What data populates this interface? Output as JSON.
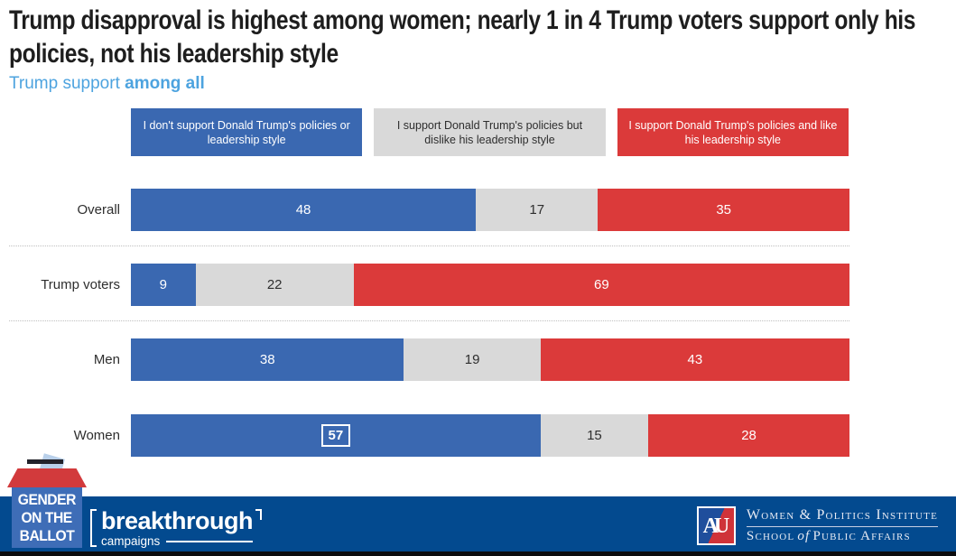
{
  "title": "Trump disapproval is highest among women; nearly 1 in 4 Trump voters support only his policies, not his leadership style",
  "subtitle": {
    "prefix": "Trump support ",
    "emphasis": "among all"
  },
  "colors": {
    "subtitle_blue": "#4DA3DF",
    "footer_navy": "#034A8F",
    "footer_strip": "#0C0D0F",
    "gob_box_blue": "#3E6DB7",
    "gob_lid_red": "#D23A3C",
    "gob_paper_blue": "#B9D0EA",
    "au_blue": "#1F4E9C",
    "au_red": "#CF3339"
  },
  "chart_data": {
    "type": "bar",
    "stacked": true,
    "orientation": "horizontal",
    "unit": "percent",
    "xlim": [
      0,
      100
    ],
    "categories": [
      "Overall",
      "Trump voters",
      "Men",
      "Women"
    ],
    "series": [
      {
        "name": "I don't support Donald Trump's policies or leadership style",
        "color": "#3A68B1",
        "values": [
          48,
          9,
          38,
          57
        ]
      },
      {
        "name": "I support Donald Trump's policies but dislike his leadership style",
        "color": "#D9D9D9",
        "values": [
          17,
          22,
          19,
          15
        ]
      },
      {
        "name": "I support Donald Trump's policies and like his leadership style",
        "color": "#DB3A3A",
        "values": [
          35,
          69,
          43,
          28
        ]
      }
    ],
    "legend_position": "top",
    "grid": false,
    "dividers_after": [
      "Overall",
      "Trump voters"
    ],
    "highlight": {
      "category": "Women",
      "series_index": 0,
      "value": 57
    }
  },
  "footer": {
    "gob": {
      "line1": "GENDER",
      "line2": "ON THE",
      "line3": "BALLOT"
    },
    "breakthrough": {
      "name": "breakthrough",
      "sub": "campaigns"
    },
    "wpi": {
      "line1": "Women & Politics Institute",
      "line2_school": "School",
      "line2_of": "of",
      "line2_rest": "Public Affairs",
      "au": "AU"
    }
  }
}
